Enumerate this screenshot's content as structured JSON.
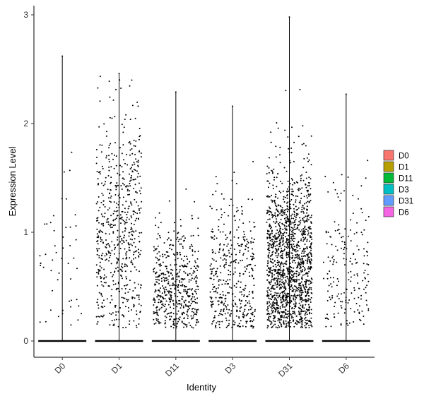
{
  "chart_data": {
    "type": "scatter",
    "subtype": "jittered strip plot with violin outline",
    "xlabel": "Identity",
    "ylabel": "Expression Level",
    "categories": [
      "D0",
      "D1",
      "D11",
      "D3",
      "D31",
      "D6"
    ],
    "ylim": [
      -0.15,
      3.05
    ],
    "yticks": [
      0,
      1,
      2,
      3
    ],
    "grid": false,
    "legend_position": "right",
    "legend": [
      {
        "label": "D0",
        "color": "#F8766D"
      },
      {
        "label": "D1",
        "color": "#B79F00"
      },
      {
        "label": "D11",
        "color": "#00BA38"
      },
      {
        "label": "D3",
        "color": "#00BFC4"
      },
      {
        "label": "D31",
        "color": "#619CFF"
      },
      {
        "label": "D6",
        "color": "#F564E3"
      }
    ],
    "series": [
      {
        "category": "D0",
        "max": 2.62,
        "n_points": 50,
        "median_nonzero": 0.9,
        "spread_nonzero": 0.6
      },
      {
        "category": "D1",
        "max": 2.46,
        "n_points": 600,
        "median_nonzero": 1.0,
        "spread_nonzero": 0.55
      },
      {
        "category": "D11",
        "max": 2.29,
        "n_points": 520,
        "median_nonzero": 0.45,
        "spread_nonzero": 0.3
      },
      {
        "category": "D3",
        "max": 2.16,
        "n_points": 420,
        "median_nonzero": 0.55,
        "spread_nonzero": 0.4
      },
      {
        "category": "D31",
        "max": 2.98,
        "n_points": 1500,
        "median_nonzero": 0.7,
        "spread_nonzero": 0.45
      },
      {
        "category": "D6",
        "max": 2.27,
        "n_points": 190,
        "median_nonzero": 0.7,
        "spread_nonzero": 0.45
      }
    ]
  }
}
